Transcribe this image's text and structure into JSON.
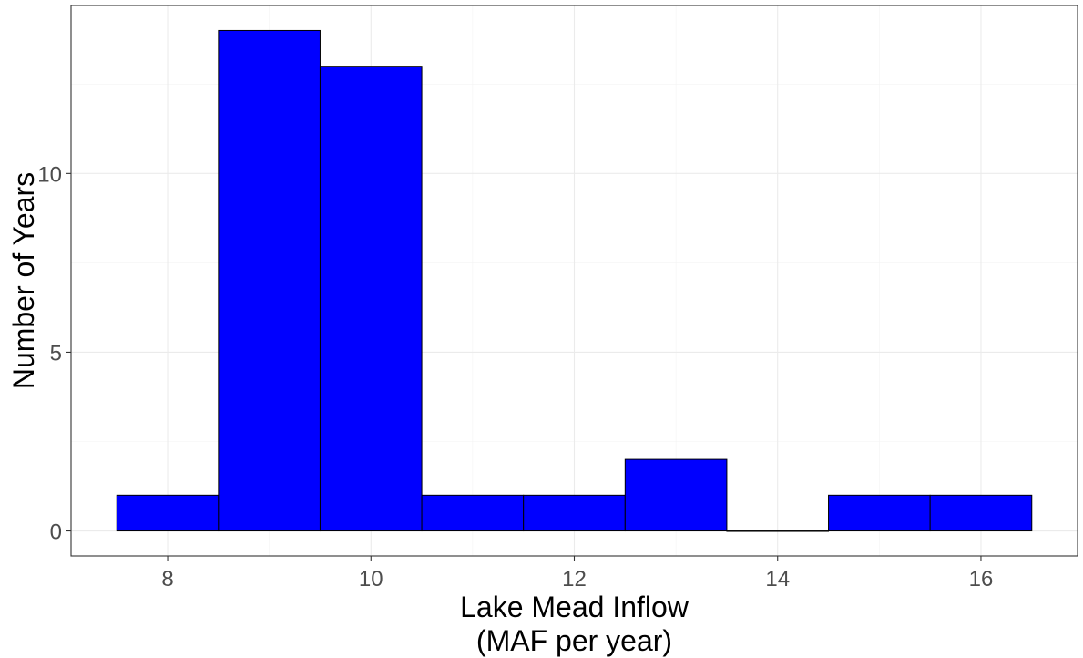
{
  "chart_data": {
    "type": "bar",
    "title": "",
    "xlabel_lines": [
      "Lake Mead Inflow",
      "(MAF per year)"
    ],
    "ylabel": "Number of Years",
    "bin_width": 1,
    "bins": [
      {
        "center": 8,
        "count": 1
      },
      {
        "center": 9,
        "count": 14
      },
      {
        "center": 10,
        "count": 13
      },
      {
        "center": 11,
        "count": 1
      },
      {
        "center": 12,
        "count": 1
      },
      {
        "center": 13,
        "count": 2
      },
      {
        "center": 14,
        "count": 0
      },
      {
        "center": 15,
        "count": 1
      },
      {
        "center": 16,
        "count": 1
      }
    ],
    "xlim": [
      7.05,
      16.95
    ],
    "ylim": [
      -0.7,
      14.7
    ],
    "x_ticks": [
      8,
      10,
      12,
      14,
      16
    ],
    "y_ticks": [
      0,
      5,
      10
    ],
    "x_tick_labels": [
      "8",
      "10",
      "12",
      "14",
      "16"
    ],
    "y_tick_labels": [
      "0",
      "5",
      "10"
    ],
    "bar_fill": "#0000ff",
    "bar_outline": "#000000",
    "grid": true,
    "legend": "none"
  }
}
